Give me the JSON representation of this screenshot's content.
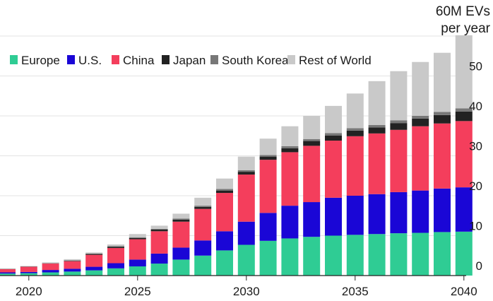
{
  "chart_data": {
    "type": "bar",
    "stacked": true,
    "unit_label_line1": "60M EVs",
    "unit_label_line2": "per year",
    "x": [
      2019,
      2020,
      2021,
      2022,
      2023,
      2024,
      2025,
      2026,
      2027,
      2028,
      2029,
      2030,
      2031,
      2032,
      2033,
      2034,
      2035,
      2036,
      2037,
      2038,
      2039,
      2040
    ],
    "x_tick_labels": [
      "2020",
      "2025",
      "2030",
      "2035",
      "2040"
    ],
    "x_tick_values": [
      2020,
      2025,
      2030,
      2035,
      2040
    ],
    "y_tick_labels": [
      "0",
      "10",
      "20",
      "30",
      "40",
      "50"
    ],
    "y_tick_values": [
      0,
      10,
      20,
      30,
      40,
      50
    ],
    "ylim": [
      0,
      60
    ],
    "grid": true,
    "legend_position": "top-left",
    "series": [
      {
        "name": "Europe",
        "color": "#2fcc94",
        "values": [
          0.5,
          0.6,
          0.8,
          1.0,
          1.3,
          1.8,
          2.3,
          3.0,
          4.0,
          5.0,
          6.3,
          7.7,
          8.7,
          9.3,
          9.7,
          10.0,
          10.2,
          10.4,
          10.6,
          10.7,
          10.9,
          11.0
        ]
      },
      {
        "name": "U.S.",
        "color": "#1a06d6",
        "values": [
          0.3,
          0.3,
          0.6,
          0.7,
          0.9,
          1.3,
          1.7,
          2.5,
          3.0,
          3.8,
          4.8,
          5.8,
          7.0,
          8.2,
          8.7,
          9.5,
          9.8,
          10.0,
          10.3,
          10.6,
          10.9,
          11.1
        ]
      },
      {
        "name": "China",
        "color": "#f43e5c",
        "values": [
          0.8,
          1.3,
          1.6,
          1.9,
          3.0,
          3.8,
          5.1,
          5.6,
          6.5,
          7.9,
          9.6,
          11.8,
          13.3,
          13.4,
          14.1,
          14.3,
          14.9,
          15.2,
          15.6,
          16.1,
          16.3,
          16.6
        ]
      },
      {
        "name": "Japan",
        "color": "#222222",
        "values": [
          0.05,
          0.05,
          0.05,
          0.1,
          0.2,
          0.3,
          0.3,
          0.4,
          0.5,
          0.5,
          0.6,
          0.7,
          0.8,
          1.0,
          1.2,
          1.3,
          1.4,
          1.5,
          1.7,
          1.9,
          2.1,
          2.4
        ]
      },
      {
        "name": "South Korea",
        "color": "#777777",
        "values": [
          0.05,
          0.05,
          0.05,
          0.1,
          0.1,
          0.2,
          0.2,
          0.2,
          0.3,
          0.3,
          0.4,
          0.4,
          0.4,
          0.5,
          0.5,
          0.6,
          0.6,
          0.6,
          0.7,
          0.7,
          0.8,
          0.8
        ]
      },
      {
        "name": "Rest of World",
        "color": "#c9c9c9",
        "values": [
          0.0,
          0.1,
          0.2,
          0.3,
          0.3,
          0.4,
          0.8,
          0.8,
          1.2,
          2.0,
          2.6,
          3.4,
          4.1,
          5.0,
          5.8,
          6.8,
          8.7,
          11.0,
          12.3,
          13.5,
          14.8,
          18.3
        ]
      }
    ]
  }
}
